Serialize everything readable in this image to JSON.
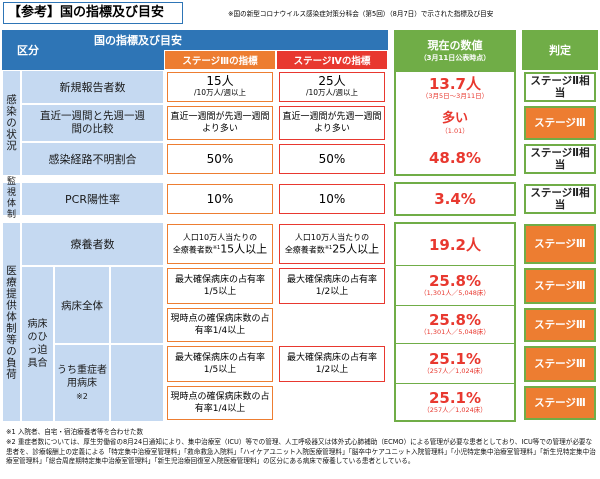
{
  "title": "【参考】国の指標及び目安",
  "subtitle": "※国の新型コロナウイルス感染症対策分科会（第5回）（8月7日）で示された指標及び目安",
  "header": {
    "category": "区分",
    "indicators": "国の指標及び目安",
    "stage3": "ステージⅢの指標",
    "stage4": "ステージⅣの指標",
    "current": "現在の数値",
    "current_sub": "（3月11日公表時点）",
    "judgement": "判定"
  },
  "groups": {
    "infection": "感染の状況",
    "monitoring": "監視体制",
    "medical": "医療提供体制等の負荷",
    "hospital_beds": "病床のひっ迫具合",
    "all_beds": "病床全体",
    "severe_beds": "うち重症者用病床",
    "severe_note": "※2"
  },
  "rows": [
    {
      "label": "新規報告者数",
      "s3_main": "15人",
      "s3_sub": "/10万人/週以上",
      "s4_main": "25人",
      "s4_sub": "/10万人/週以上",
      "cur_main": "13.7人",
      "cur_sub": "（3月5日～3月11日）",
      "judge": "ステージⅡ相当"
    },
    {
      "label": "直近一週間と先週一週間の比較",
      "s3": "直近一週間が先週一週間より多い",
      "s4": "直近一週間が先週一週間より多い",
      "cur_main": "多い",
      "cur_sub": "（1.01）",
      "judge": "ステージⅢ"
    },
    {
      "label": "感染経路不明割合",
      "s3": "50%",
      "s4": "50%",
      "cur_main": "48.8%",
      "judge": "ステージⅡ相当"
    },
    {
      "label": "PCR陽性率",
      "s3": "10%",
      "s4": "10%",
      "cur_main": "3.4%",
      "judge": "ステージⅡ相当"
    },
    {
      "label": "療養者数",
      "s3_a": "人口10万人当たりの",
      "s3_b": "全療養者数",
      "s3_note": "※1",
      "s3_main": "15人以上",
      "s4_a": "人口10万人当たりの",
      "s4_b": "全療養者数",
      "s4_note": "※1",
      "s4_main": "25人以上",
      "cur_main": "19.2人",
      "judge": "ステージⅢ"
    },
    {
      "s3": "最大確保病床の占有率1/5以上",
      "s4": "最大確保病床の占有率1/2以上",
      "cur_main": "25.8%",
      "cur_sub": "（1,301人／5,048床）",
      "judge": "ステージⅢ"
    },
    {
      "s3": "現時点の確保病床数の占有率1/4以上",
      "cur_main": "25.8%",
      "cur_sub": "（1,301人／5,048床）",
      "judge": "ステージⅢ"
    },
    {
      "s3": "最大確保病床の占有率1/5以上",
      "s4": "最大確保病床の占有率1/2以上",
      "cur_main": "25.1%",
      "cur_sub": "（257人／1,024床）",
      "judge": "ステージⅢ"
    },
    {
      "s3": "現時点の確保病床数の占有率1/4以上",
      "cur_main": "25.1%",
      "cur_sub": "（257人／1,024床）",
      "judge": "ステージⅢ"
    }
  ],
  "notes": [
    "※1 入院者、自宅・宿泊療養者等を合わせた数",
    "※2 重症者数については、厚生労働省の8月24日通知により、集中治療室（ICU）等での管理、人工呼吸器又は体外式心肺補助（ECMO）による管理が必要な患者としており、ICU等での管理が必要な患者を、診療報酬上の定義による「特定集中治療室管理料」「救命救急入院料」「ハイケアユニット入院医療管理料」「脳卒中ケアユニット入院管理料」「小児特定集中治療室管理料」「新生児特定集中治療室管理料」「総合周産期特定集中治療室管理料」「新生児治療回復室入院医療管理料」の区分にある病床で療養している患者としている。"
  ],
  "colors": {
    "blue": "#2e75b6",
    "light_blue": "#c5d9f1",
    "orange": "#ed7d31",
    "red": "#e8382f",
    "green": "#70ad47"
  }
}
